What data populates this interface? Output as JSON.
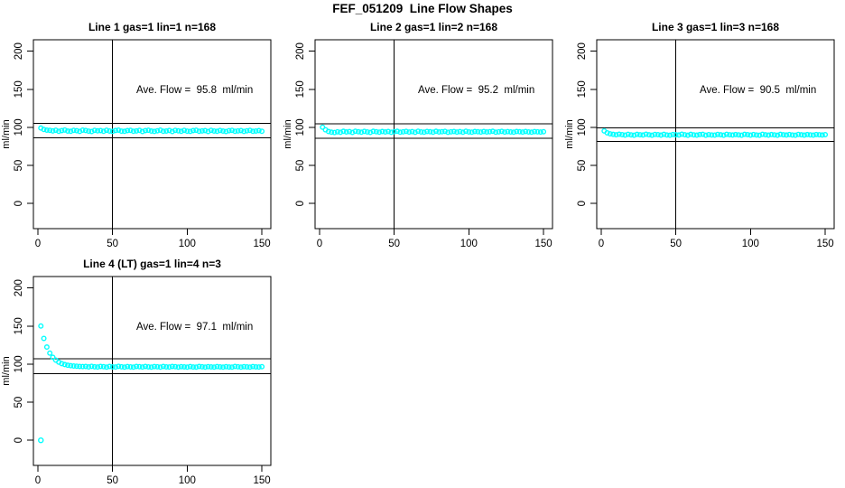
{
  "page_title": "FEF_051209  Line Flow Shapes",
  "colors": {
    "point": "#00ffff",
    "line": "#000000",
    "background": "#ffffff",
    "text": "#000000"
  },
  "chart_data": [
    {
      "type": "scatter",
      "title": "Line 1 gas=1 lin=1 n=168",
      "annotation": "Ave. Flow =  95.8  ml/min",
      "ave_flow_ml_min": 95.8,
      "ylabel": "ml/min",
      "xlim": [
        -3,
        156
      ],
      "ylim": [
        -33,
        215
      ],
      "xticks": [
        0,
        50,
        100,
        150
      ],
      "yticks": [
        0,
        50,
        100,
        150,
        200
      ],
      "hlines": [
        105.4,
        86.2
      ],
      "vline": 50,
      "annotation_pos": [
        105,
        150
      ],
      "x": {
        "start": 2,
        "step": 2,
        "count": 75
      },
      "y": [
        99.1,
        97.2,
        96.4,
        96.0,
        95.3,
        96.2,
        94.9,
        95.8,
        96.5,
        95.1,
        94.8,
        96.0,
        95.6,
        94.7,
        96.3,
        95.9,
        95.0,
        94.6,
        96.1,
        95.4,
        95.8,
        94.9,
        96.2,
        95.2,
        94.7,
        95.9,
        96.4,
        95.0,
        94.8,
        95.7,
        96.1,
        94.9,
        95.3,
        96.0,
        94.6,
        95.8,
        96.2,
        95.1,
        94.7,
        95.5,
        96.3,
        94.9,
        95.2,
        95.9,
        94.6,
        96.0,
        95.4,
        94.8,
        96.1,
        95.0,
        94.7,
        95.8,
        96.2,
        94.9,
        95.3,
        95.7,
        94.6,
        96.0,
        95.2,
        94.8,
        95.9,
        95.1,
        94.6,
        95.6,
        96.1,
        94.9,
        95.3,
        95.8,
        94.7,
        95.5,
        96.0,
        94.8,
        95.2,
        95.7,
        94.9
      ]
    },
    {
      "type": "scatter",
      "title": "Line 2 gas=1 lin=2 n=168",
      "annotation": "Ave. Flow =  95.2  ml/min",
      "ave_flow_ml_min": 95.2,
      "ylabel": "ml/min",
      "xlim": [
        -3,
        156
      ],
      "ylim": [
        -33,
        215
      ],
      "xticks": [
        0,
        50,
        100,
        150
      ],
      "yticks": [
        0,
        50,
        100,
        150,
        200
      ],
      "hlines": [
        104.7,
        85.7
      ],
      "vline": 50,
      "annotation_pos": [
        105,
        150
      ],
      "x": {
        "start": 2,
        "step": 2,
        "count": 75
      },
      "y": [
        100.2,
        96.8,
        94.5,
        93.6,
        93.2,
        94.1,
        93.5,
        94.8,
        93.9,
        94.4,
        93.3,
        94.9,
        94.2,
        93.6,
        94.7,
        94.0,
        93.4,
        94.8,
        94.3,
        93.7,
        94.5,
        93.9,
        94.6,
        93.5,
        94.2,
        94.8,
        93.6,
        94.1,
        94.7,
        93.8,
        94.4,
        93.5,
        94.9,
        94.0,
        93.6,
        94.6,
        94.2,
        93.7,
        94.8,
        93.9,
        94.3,
        94.7,
        93.5,
        94.1,
        94.6,
        93.8,
        94.4,
        93.6,
        94.9,
        94.0,
        93.7,
        94.5,
        94.2,
        93.8,
        94.6,
        93.9,
        94.3,
        94.8,
        93.6,
        94.1,
        94.7,
        93.8,
        94.4,
        94.0,
        93.7,
        94.5,
        94.2,
        93.8,
        94.6,
        94.0,
        93.6,
        94.4,
        94.1,
        93.8,
        94.3
      ]
    },
    {
      "type": "scatter",
      "title": "Line 3 gas=1 lin=3 n=168",
      "annotation": "Ave. Flow =  90.5  ml/min",
      "ave_flow_ml_min": 90.5,
      "ylabel": "ml/min",
      "xlim": [
        -3,
        156
      ],
      "ylim": [
        -33,
        215
      ],
      "xticks": [
        0,
        50,
        100,
        150
      ],
      "yticks": [
        0,
        50,
        100,
        150,
        200
      ],
      "hlines": [
        99.6,
        81.5
      ],
      "vline": 50,
      "annotation_pos": [
        105,
        150
      ],
      "x": {
        "start": 2,
        "step": 2,
        "count": 75
      },
      "y": [
        95.3,
        92.8,
        91.5,
        90.8,
        90.2,
        91.0,
        90.4,
        89.8,
        90.9,
        90.1,
        89.7,
        90.8,
        90.3,
        89.9,
        91.0,
        90.2,
        89.6,
        90.7,
        90.4,
        89.8,
        90.9,
        90.0,
        89.7,
        90.6,
        90.2,
        89.9,
        91.0,
        90.3,
        89.6,
        90.8,
        90.1,
        89.8,
        90.5,
        90.9,
        89.7,
        90.4,
        90.0,
        89.8,
        90.7,
        90.2,
        89.6,
        90.9,
        90.3,
        89.9,
        90.5,
        90.1,
        89.7,
        90.8,
        90.4,
        89.8,
        90.6,
        90.0,
        89.7,
        90.9,
        90.2,
        89.8,
        90.5,
        90.1,
        89.6,
        90.8,
        90.3,
        89.9,
        90.6,
        90.0,
        89.7,
        90.7,
        90.2,
        89.8,
        90.5,
        90.1,
        89.8,
        90.6,
        90.3,
        89.9,
        90.4
      ]
    },
    {
      "type": "scatter",
      "title": "Line 4 (LT) gas=1 lin=4 n=3",
      "annotation": "Ave. Flow =  97.1  ml/min",
      "ave_flow_ml_min": 97.1,
      "ylabel": "ml/min",
      "xlim": [
        -3,
        156
      ],
      "ylim": [
        -33,
        215
      ],
      "xticks": [
        0,
        50,
        100,
        150
      ],
      "yticks": [
        0,
        50,
        100,
        150,
        200
      ],
      "hlines": [
        106.8,
        87.4
      ],
      "vline": 50,
      "annotation_pos": [
        105,
        150
      ],
      "outlier_point": [
        2,
        0
      ],
      "x": {
        "start": 2,
        "step": 2,
        "count": 75
      },
      "y": [
        150.0,
        133.7,
        122.4,
        114.5,
        109.0,
        105.2,
        102.6,
        100.7,
        99.4,
        98.5,
        97.9,
        97.5,
        97.2,
        97.0,
        96.8,
        96.9,
        96.3,
        97.1,
        96.5,
        96.2,
        97.0,
        96.6,
        96.1,
        96.9,
        96.4,
        96.2,
        97.1,
        96.5,
        96.0,
        96.8,
        96.3,
        96.1,
        96.9,
        96.6,
        96.2,
        97.0,
        96.4,
        96.1,
        96.8,
        96.5,
        96.0,
        96.9,
        96.3,
        96.2,
        97.0,
        96.6,
        96.1,
        96.7,
        96.4,
        96.0,
        96.8,
        96.2,
        96.1,
        96.9,
        96.5,
        96.0,
        96.7,
        96.3,
        96.1,
        96.8,
        96.4,
        96.0,
        96.6,
        96.2,
        96.1,
        96.9,
        96.5,
        96.0,
        96.7,
        96.3,
        96.1,
        96.8,
        96.4,
        96.2,
        96.6
      ]
    }
  ]
}
